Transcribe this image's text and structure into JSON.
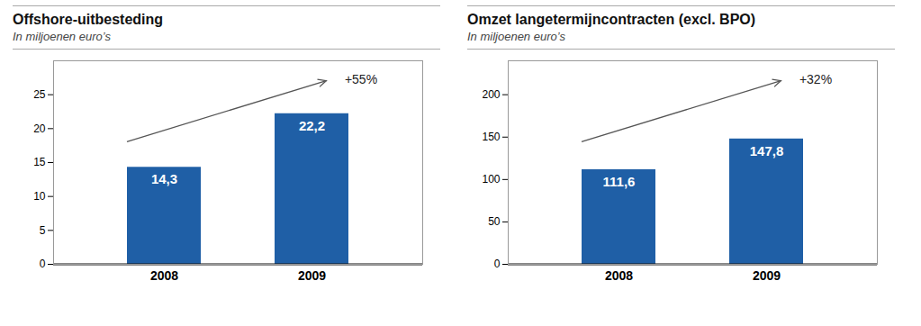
{
  "chart_data": [
    {
      "type": "bar",
      "title": "Offshore-uitbesteding",
      "subtitle": "In miljoenen euro’s",
      "categories": [
        "2008",
        "2009"
      ],
      "values": [
        14.3,
        22.2
      ],
      "value_labels": [
        "14,3",
        "22,2"
      ],
      "data_labels": true,
      "annotations": [
        "+55%"
      ],
      "color": "#1f5fa6",
      "ylim": [
        0,
        30
      ],
      "yticks": [
        0,
        5,
        10,
        15,
        20,
        25
      ],
      "grid": false
    },
    {
      "type": "bar",
      "title": "Omzet langetermijncontracten (excl. BPO)",
      "subtitle": "In miljoenen euro’s",
      "categories": [
        "2008",
        "2009"
      ],
      "values": [
        111.6,
        147.8
      ],
      "value_labels": [
        "111,6",
        "147,8"
      ],
      "data_labels": true,
      "annotations": [
        "+32%"
      ],
      "color": "#1f5fa6",
      "ylim": [
        0,
        240
      ],
      "yticks": [
        0,
        50,
        100,
        150,
        200
      ],
      "grid": false
    }
  ]
}
